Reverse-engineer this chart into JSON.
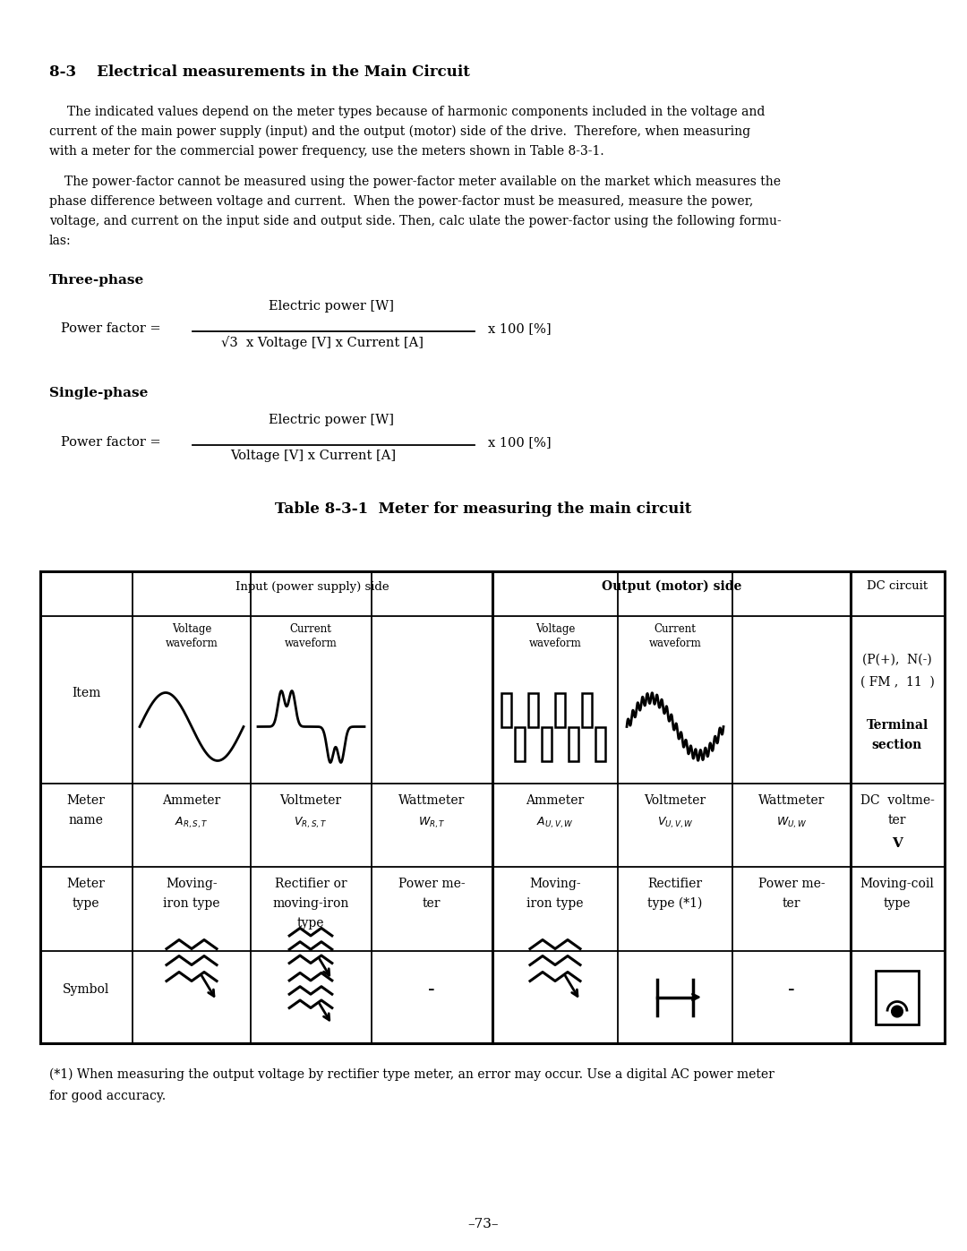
{
  "title_num": "8-3",
  "title_text": "Electrical measurements in the Main Circuit",
  "para1_line1": "The indicated values depend on the meter types because of harmonic components included in the voltage and",
  "para1_line2": "current of the main power supply (input) and the output (motor) side of the drive.  Therefore, when measuring",
  "para1_line3": "with a meter for the commercial power frequency, use the meters shown in Table 8-3-1.",
  "para2_line1": "The power-factor cannot be measured using the power-factor meter available on the market which measures the",
  "para2_line2": "phase difference between voltage and current.  When the power-factor must be measured, measure the power,",
  "para2_line3": "voltage, and current on the input side and output side. Then, calc ulate the power-factor using the following formu-",
  "para2_line4": "las:",
  "three_phase_label": "Three-phase",
  "pf_label": "Power factor =",
  "three_num": "Electric power [W]",
  "three_den": "√3  x Voltage [V] x Current [A]",
  "multiplier": "x 100 [%]",
  "single_phase_label": "Single-phase",
  "single_num": "Electric power [W]",
  "single_den": "Voltage [V] x Current [A]",
  "table_title": "Table 8-3-1  Meter for measuring the main circuit",
  "footnote_line1": "(*1) When measuring the output voltage by rectifier type meter, an error may occur. Use a digital AC power meter",
  "footnote_line2": "for good accuracy.",
  "page_num": "–73–",
  "bg_color": "#ffffff"
}
